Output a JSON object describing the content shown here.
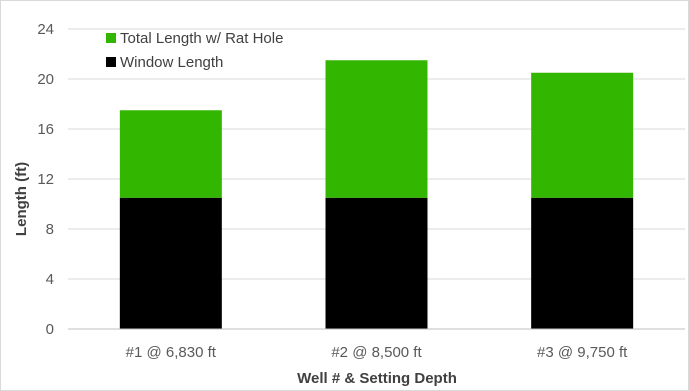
{
  "chart_data": {
    "type": "bar",
    "stacked": true,
    "categories": [
      "#1 @ 6,830 ft",
      "#2 @ 8,500 ft",
      "#3 @ 9,750 ft"
    ],
    "series": [
      {
        "name": "Window Length",
        "values": [
          10.5,
          10.5,
          10.5
        ],
        "color": "#000000"
      },
      {
        "name": "Total Length w/ Rat Hole",
        "values": [
          7.0,
          11.0,
          10.0
        ],
        "color": "#33b600"
      }
    ],
    "title": "",
    "xlabel": "Well # & Setting Depth",
    "ylabel": "Length (ft)",
    "ylim": [
      0,
      24
    ],
    "yticks": [
      0,
      4,
      8,
      12,
      16,
      20,
      24
    ],
    "grid": "horizontal",
    "legend_position": "top-left",
    "legend_order": [
      "Total Length w/ Rat Hole",
      "Window Length"
    ]
  }
}
